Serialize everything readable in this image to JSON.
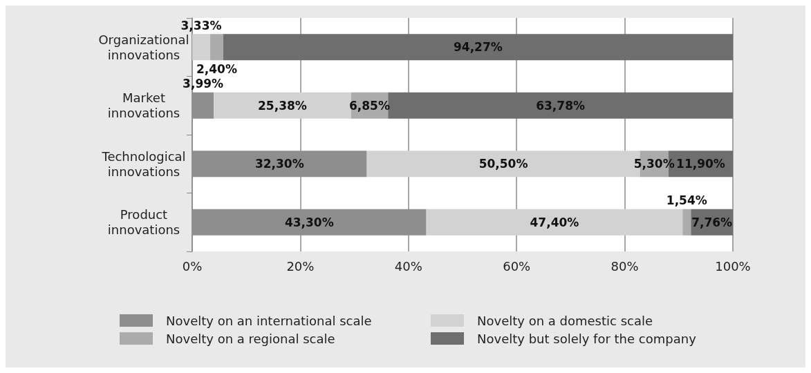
{
  "chart_data": {
    "type": "bar",
    "orientation": "horizontal",
    "stacked": true,
    "categories": [
      "Organizational\ninnovations",
      "Market\ninnovations",
      "Technological\ninnovations",
      "Product\ninnovations"
    ],
    "series": [
      {
        "name": "Novelty on an international scale",
        "color": "#8e8e8e",
        "values": [
          0,
          3.99,
          32.3,
          43.3
        ],
        "value_labels": [
          null,
          "3,99%",
          "32,30%",
          "43,30%"
        ]
      },
      {
        "name": "Novelty on a domestic scale",
        "color": "#d2d2d2",
        "values": [
          3.33,
          25.38,
          50.5,
          47.4
        ],
        "value_labels": [
          "3,33%",
          "25,38%",
          "50,50%",
          "47,40%"
        ]
      },
      {
        "name": "Novelty on a regional scale",
        "color": "#ababab",
        "values": [
          2.4,
          6.85,
          5.3,
          1.54
        ],
        "value_labels": [
          "2,40%",
          "6,85%",
          "5,30%",
          "1,54%"
        ]
      },
      {
        "name": "Novelty but solely for the company",
        "color": "#6e6e6e",
        "values": [
          94.27,
          63.78,
          11.9,
          7.76
        ],
        "value_labels": [
          "94,27%",
          "63,78%",
          "11,90%",
          "7,76%"
        ]
      }
    ],
    "xlim": [
      0,
      100
    ],
    "xticks": [
      {
        "value": 0,
        "label": "0%"
      },
      {
        "value": 20,
        "label": "20%"
      },
      {
        "value": 40,
        "label": "40%"
      },
      {
        "value": 60,
        "label": "60%"
      },
      {
        "value": 80,
        "label": "80%"
      },
      {
        "value": 100,
        "label": "100%"
      }
    ],
    "grid": "x",
    "legend": "bottom"
  }
}
